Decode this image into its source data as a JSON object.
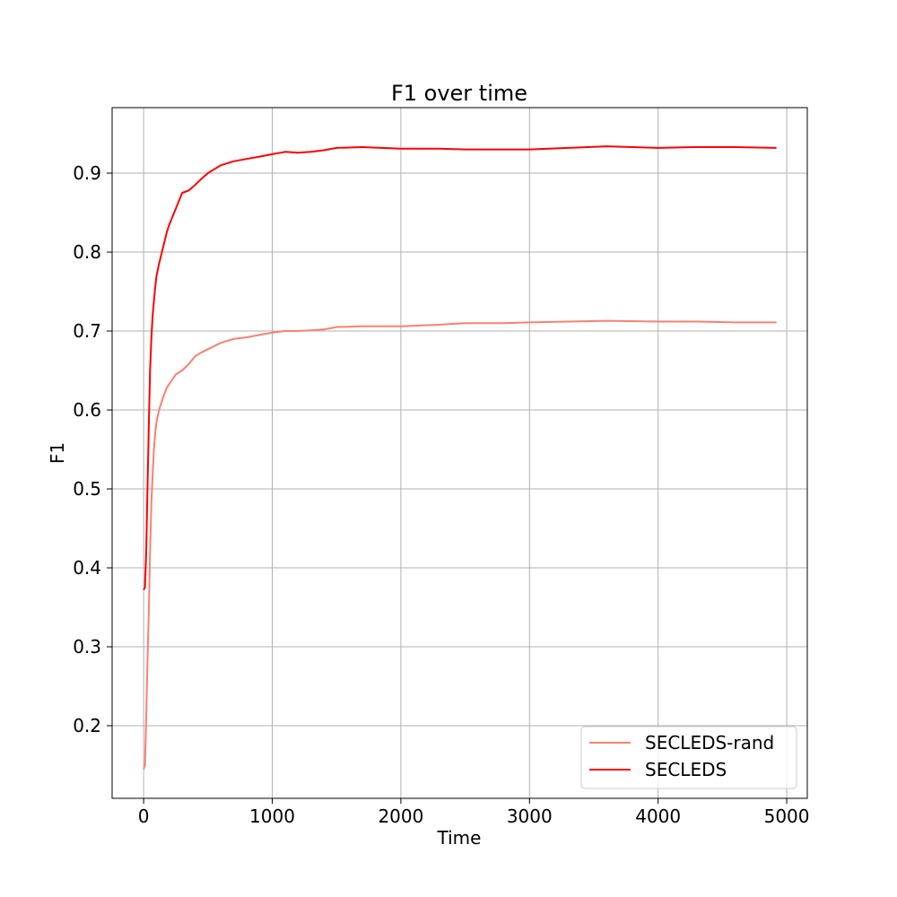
{
  "chart_data": {
    "type": "line",
    "title": "F1 over time",
    "xlabel": "Time",
    "ylabel": "F1",
    "xlim": [
      -245,
      5160
    ],
    "ylim": [
      0.108,
      0.983
    ],
    "xticks": [
      0,
      1000,
      2000,
      3000,
      4000,
      5000
    ],
    "yticks": [
      0.2,
      0.3,
      0.4,
      0.5,
      0.6,
      0.7,
      0.8,
      0.9
    ],
    "grid": true,
    "legend_position": "lower-right",
    "series": [
      {
        "name": "SECLEDS-rand",
        "color": "#fa8072",
        "x": [
          0,
          10,
          20,
          30,
          40,
          50,
          60,
          70,
          80,
          90,
          100,
          120,
          150,
          180,
          200,
          250,
          300,
          350,
          400,
          450,
          500,
          600,
          700,
          800,
          900,
          1000,
          1100,
          1200,
          1300,
          1400,
          1500,
          1700,
          2000,
          2300,
          2500,
          2800,
          3000,
          3300,
          3600,
          4000,
          4300,
          4600,
          4920
        ],
        "y": [
          0.145,
          0.15,
          0.21,
          0.28,
          0.345,
          0.42,
          0.48,
          0.52,
          0.55,
          0.57,
          0.585,
          0.6,
          0.615,
          0.628,
          0.633,
          0.645,
          0.65,
          0.658,
          0.668,
          0.673,
          0.677,
          0.685,
          0.69,
          0.692,
          0.695,
          0.698,
          0.7,
          0.7,
          0.701,
          0.702,
          0.705,
          0.706,
          0.706,
          0.708,
          0.71,
          0.71,
          0.711,
          0.712,
          0.713,
          0.712,
          0.712,
          0.711,
          0.711
        ]
      },
      {
        "name": "SECLEDS",
        "color": "#ff0000",
        "x": [
          0,
          10,
          20,
          30,
          40,
          50,
          60,
          70,
          80,
          90,
          100,
          120,
          150,
          180,
          200,
          250,
          300,
          350,
          400,
          450,
          500,
          600,
          700,
          800,
          900,
          1000,
          1100,
          1200,
          1300,
          1400,
          1500,
          1700,
          2000,
          2300,
          2500,
          2800,
          3000,
          3300,
          3600,
          4000,
          4300,
          4600,
          4920
        ],
        "y": [
          0.372,
          0.375,
          0.42,
          0.5,
          0.58,
          0.65,
          0.69,
          0.72,
          0.738,
          0.755,
          0.77,
          0.785,
          0.805,
          0.825,
          0.835,
          0.855,
          0.875,
          0.878,
          0.885,
          0.893,
          0.9,
          0.91,
          0.915,
          0.918,
          0.921,
          0.924,
          0.927,
          0.926,
          0.927,
          0.929,
          0.932,
          0.933,
          0.931,
          0.931,
          0.93,
          0.93,
          0.93,
          0.932,
          0.934,
          0.932,
          0.933,
          0.933,
          0.932
        ]
      }
    ]
  }
}
